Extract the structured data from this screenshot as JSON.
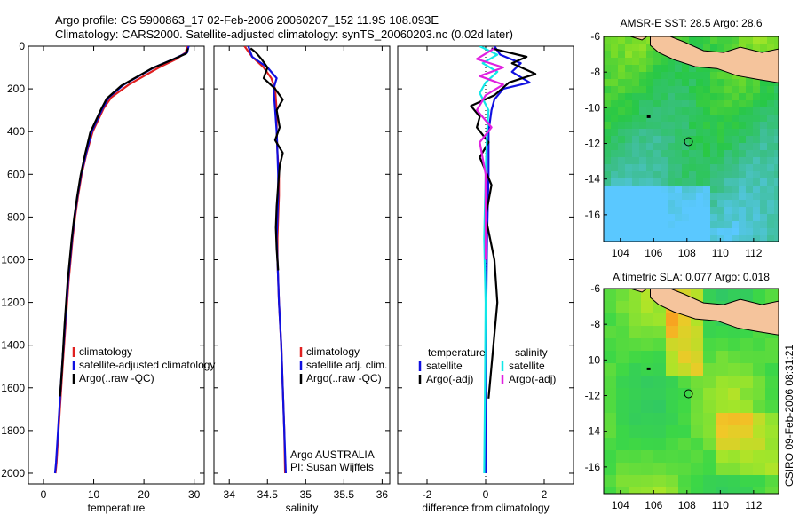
{
  "header": {
    "line1": "Argo profile: CS 5900863_17 02-Feb-2006 20060207_152 11.9S 108.093E",
    "line2": "Climatology: CARS2000. Satellite-adjusted climatology: synTS_20060203.nc (0.02d later)"
  },
  "side_label": "CSIRO 09-Feb-2006 08:31:21",
  "colors": {
    "red": "#e02020",
    "blue": "#1010e0",
    "black": "#000000",
    "cyan": "#10e8e8",
    "magenta": "#e020e0",
    "land": "#f5c49c"
  },
  "chart_data": [
    {
      "id": "temperature",
      "type": "line",
      "xlabel": "temperature",
      "ylabel": "",
      "xlim": [
        -3,
        32
      ],
      "ylim": [
        2050,
        0
      ],
      "xticks": [
        0,
        10,
        20,
        30
      ],
      "yticks": [
        0,
        200,
        400,
        600,
        800,
        1000,
        1200,
        1400,
        1600,
        1800,
        2000
      ],
      "legend": {
        "placement": "bottom-right",
        "entries": [
          "climatology",
          "satellite-adjusted climatology",
          "Argo(..raw -QC)"
        ]
      },
      "series": [
        {
          "name": "climatology",
          "color": "red",
          "x": [
            28.6,
            28.3,
            26.5,
            23.0,
            17.0,
            13.5,
            12.0,
            10.8,
            9.8,
            8.6,
            7.6,
            6.9,
            6.3,
            5.8,
            5.0,
            4.4,
            3.8,
            3.4,
            3.0,
            2.6,
            2.4
          ],
          "y": [
            0,
            30,
            60,
            100,
            180,
            240,
            290,
            350,
            400,
            500,
            600,
            700,
            800,
            900,
            1100,
            1300,
            1500,
            1650,
            1800,
            1950,
            2000
          ]
        },
        {
          "name": "satellite-adjusted climatology",
          "color": "blue",
          "x": [
            28.9,
            28.6,
            26.0,
            22.0,
            16.0,
            13.0,
            11.8,
            10.6,
            9.6,
            8.5,
            7.5,
            6.8,
            6.2,
            5.7,
            4.9,
            4.3,
            3.7,
            3.3,
            2.9,
            2.5,
            2.3
          ],
          "y": [
            0,
            30,
            60,
            100,
            180,
            240,
            290,
            350,
            400,
            500,
            600,
            700,
            800,
            900,
            1100,
            1300,
            1500,
            1650,
            1800,
            1950,
            2000
          ]
        },
        {
          "name": "Argo(..raw -QC)",
          "color": "black",
          "x": [
            28.8,
            28.4,
            25.5,
            21.5,
            15.5,
            12.6,
            11.5,
            10.3,
            9.3,
            8.3,
            7.4,
            6.7,
            6.1,
            5.6,
            4.8,
            4.2,
            3.7,
            3.3
          ],
          "y": [
            10,
            35,
            65,
            105,
            185,
            245,
            295,
            355,
            405,
            505,
            605,
            705,
            805,
            905,
            1105,
            1305,
            1505,
            1640
          ]
        }
      ]
    },
    {
      "id": "salinity",
      "type": "line",
      "xlabel": "salinity",
      "ylabel": "",
      "xlim": [
        33.8,
        36.1
      ],
      "ylim": [
        2050,
        0
      ],
      "xticks": [
        34,
        34.5,
        35,
        35.5,
        36
      ],
      "legend": {
        "placement": "bottom-right",
        "entries": [
          "climatology",
          "satellite adj. clim.",
          "Argo(..raw -QC)"
        ]
      },
      "annotation": [
        "Argo AUSTRALIA",
        "PI: Susan Wijffels"
      ],
      "series": [
        {
          "name": "climatology",
          "color": "red",
          "x": [
            34.2,
            34.3,
            34.45,
            34.55,
            34.6,
            34.62,
            34.62,
            34.63,
            34.65,
            34.65,
            34.64,
            34.63,
            34.63,
            34.65,
            34.68,
            34.7,
            34.72,
            34.73
          ],
          "y": [
            0,
            50,
            100,
            150,
            200,
            300,
            400,
            500,
            600,
            700,
            800,
            900,
            1000,
            1200,
            1400,
            1600,
            1800,
            2000
          ]
        },
        {
          "name": "satellite adj. clim.",
          "color": "blue",
          "x": [
            34.25,
            34.3,
            34.5,
            34.62,
            34.58,
            34.6,
            34.62,
            34.63,
            34.64,
            34.64,
            34.63,
            34.62,
            34.63,
            34.65,
            34.68,
            34.7,
            34.72,
            34.74
          ],
          "y": [
            0,
            50,
            100,
            150,
            200,
            300,
            400,
            500,
            600,
            700,
            800,
            900,
            1000,
            1200,
            1400,
            1600,
            1800,
            2000
          ]
        },
        {
          "name": "Argo(..raw -QC)",
          "color": "black",
          "x": [
            34.28,
            34.35,
            34.42,
            34.5,
            34.45,
            34.6,
            34.7,
            34.62,
            34.66,
            34.6,
            34.7,
            34.66,
            34.64,
            34.62,
            34.61,
            34.62,
            34.64
          ],
          "y": [
            10,
            30,
            60,
            100,
            150,
            200,
            250,
            300,
            380,
            440,
            500,
            560,
            650,
            750,
            850,
            950,
            1050
          ]
        }
      ]
    },
    {
      "id": "difference",
      "type": "line",
      "xlabel": "difference from climatology",
      "ylabel": "",
      "xlim": [
        -3,
        3
      ],
      "ylim": [
        2050,
        0
      ],
      "xticks": [
        -2,
        0,
        2
      ],
      "legend": {
        "placement": "bottom-right",
        "entries": [
          {
            "group": "temperature",
            "items": [
              "satellite",
              "Argo(-adj)"
            ]
          },
          {
            "group": "salinity",
            "items": [
              "satellite",
              "Argo(-adj)"
            ]
          }
        ]
      },
      "series": [
        {
          "name": "temperature satellite",
          "color": "blue",
          "x": [
            0.3,
            0.5,
            1.2,
            0.9,
            1.5,
            0.6,
            0.3,
            0.2,
            0.1,
            0.1,
            0.05,
            0.0,
            0.0
          ],
          "y": [
            0,
            40,
            80,
            120,
            170,
            200,
            250,
            300,
            400,
            600,
            900,
            1500,
            2000
          ]
        },
        {
          "name": "temperature Argo(-adj)",
          "color": "black",
          "x": [
            0.2,
            1.4,
            0.9,
            1.7,
            0.8,
            0.3,
            -0.5,
            -0.2,
            -0.3,
            0.1,
            -0.2,
            0.2,
            0.0,
            0.3,
            0.4,
            0.2,
            0.1
          ],
          "y": [
            10,
            50,
            80,
            130,
            170,
            230,
            280,
            330,
            380,
            450,
            520,
            650,
            800,
            1000,
            1200,
            1500,
            1650
          ]
        },
        {
          "name": "salinity satellite",
          "color": "cyan",
          "x": [
            -0.2,
            0.4,
            -0.1,
            0.4,
            0.0,
            -0.2,
            0.1,
            0.05,
            0.0,
            -0.05,
            0.0,
            -0.02,
            -0.05
          ],
          "y": [
            0,
            40,
            80,
            120,
            170,
            220,
            300,
            400,
            600,
            900,
            1200,
            1600,
            2000
          ]
        },
        {
          "name": "salinity Argo(-adj)",
          "color": "magenta",
          "x": [
            0.3,
            -0.3,
            0.6,
            -0.2,
            0.6,
            0.0,
            -0.3,
            0.2,
            -0.2,
            0.0,
            0.0
          ],
          "y": [
            10,
            60,
            100,
            140,
            180,
            230,
            300,
            380,
            450,
            600,
            1000
          ]
        }
      ]
    },
    {
      "id": "sst_map",
      "type": "heatmap",
      "title": "AMSR-E SST: 28.5 Argo: 28.6",
      "xlim": [
        103,
        113.5
      ],
      "ylim": [
        -17.5,
        -6
      ],
      "xticks": [
        104,
        106,
        108,
        110,
        112
      ],
      "yticks": [
        -6,
        -8,
        -10,
        -12,
        -14,
        -16
      ],
      "float_position": [
        108.093,
        -11.9
      ],
      "prev_position": [
        105.7,
        -10.5
      ]
    },
    {
      "id": "sla_map",
      "type": "heatmap",
      "title": "Altimetric SLA: 0.077 Argo: 0.018",
      "xlim": [
        103,
        113.5
      ],
      "ylim": [
        -17.5,
        -6
      ],
      "xticks": [
        104,
        106,
        108,
        110,
        112
      ],
      "yticks": [
        -6,
        -8,
        -10,
        -12,
        -14,
        -16
      ],
      "float_position": [
        108.093,
        -11.9
      ],
      "prev_position": [
        105.7,
        -10.5
      ]
    }
  ]
}
